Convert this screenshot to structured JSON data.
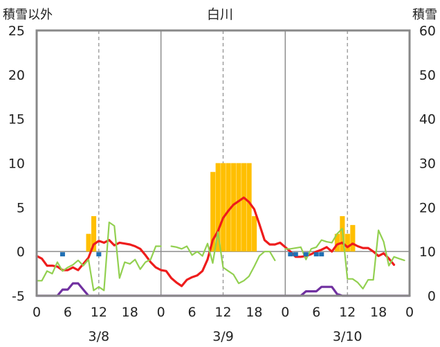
{
  "chart_data": {
    "type": "line",
    "title": "白川",
    "ylabel_left": "積雪以外",
    "ylabel_right": "積雪",
    "ylim_left": [
      -5,
      25
    ],
    "ylim_right": [
      0,
      60
    ],
    "yticks_left": [
      "25",
      "20",
      "15",
      "10",
      "5",
      "0",
      "-5"
    ],
    "yticks_right": [
      "60",
      "50",
      "40",
      "30",
      "20",
      "10",
      "0"
    ],
    "xlim_hours": [
      0,
      72
    ],
    "xtick_labels": [
      "0",
      "6",
      "12",
      "18",
      "0",
      "6",
      "12",
      "18",
      "0",
      "6",
      "12",
      "18",
      "0"
    ],
    "date_labels": [
      "3/8",
      "3/9",
      "3/10"
    ],
    "grid": "vertical day dividers and dashed noon lines",
    "colors": {
      "temperature": "#ee1c1c",
      "snowfall_bars": "#ffbf00",
      "humidity_line": "#92d050",
      "snow_depth_line": "#7030a0",
      "precip_marks": "#1f6fb4",
      "axis": "#888888"
    },
    "series": [
      {
        "values": [
          [
            0,
            -0.5
          ],
          [
            1,
            -0.8
          ],
          [
            2,
            -1.6
          ],
          [
            3,
            -1.6
          ],
          [
            4,
            -1.7
          ],
          [
            5,
            -2.1
          ],
          [
            6,
            -2.1
          ],
          [
            7,
            -1.8
          ],
          [
            8,
            -2.1
          ],
          [
            9,
            -1.4
          ],
          [
            10,
            -0.7
          ],
          [
            11,
            0.8
          ],
          [
            12,
            1.2
          ],
          [
            13,
            1.0
          ],
          [
            14,
            1.3
          ],
          [
            15,
            0.7
          ],
          [
            16,
            1.0
          ],
          [
            17,
            0.9
          ],
          [
            18,
            0.8
          ],
          [
            19,
            0.6
          ],
          [
            20,
            0.3
          ],
          [
            21,
            -0.4
          ],
          [
            22,
            -1.2
          ],
          [
            23,
            -1.8
          ],
          [
            24,
            -2.1
          ],
          [
            25,
            -2.2
          ],
          [
            26,
            -3.0
          ],
          [
            27,
            -3.5
          ],
          [
            28,
            -3.9
          ],
          [
            29,
            -3.2
          ],
          [
            30,
            -2.9
          ],
          [
            31,
            -2.7
          ],
          [
            32,
            -2.2
          ],
          [
            33,
            -0.9
          ],
          [
            34,
            1.3
          ],
          [
            35,
            2.3
          ],
          [
            36,
            3.8
          ],
          [
            37,
            4.6
          ],
          [
            38,
            5.3
          ],
          [
            39,
            5.7
          ],
          [
            40,
            6.1
          ],
          [
            41,
            5.6
          ],
          [
            42,
            4.8
          ],
          [
            43,
            3.1
          ],
          [
            44,
            1.3
          ],
          [
            45,
            0.8
          ],
          [
            46,
            0.8
          ],
          [
            47,
            1.0
          ],
          [
            48,
            0.5
          ],
          [
            49,
            0.0
          ],
          [
            50,
            -0.6
          ],
          [
            51,
            -0.6
          ],
          [
            52,
            -0.5
          ],
          [
            53,
            -0.3
          ],
          [
            54,
            0.0
          ],
          [
            55,
            0.2
          ],
          [
            56,
            0.5
          ],
          [
            57,
            0.0
          ],
          [
            58,
            0.8
          ],
          [
            59,
            1.0
          ],
          [
            60,
            0.5
          ],
          [
            61,
            0.9
          ],
          [
            62,
            0.6
          ],
          [
            63,
            0.4
          ],
          [
            64,
            0.4
          ],
          [
            65,
            0.0
          ],
          [
            66,
            -0.5
          ],
          [
            67,
            -0.2
          ],
          [
            68,
            -0.8
          ],
          [
            69,
            -1.5
          ]
        ]
      },
      {
        "values": [
          [
            0,
            -3.3
          ],
          [
            1,
            -3.3
          ],
          [
            2,
            -2.2
          ],
          [
            3,
            -2.5
          ],
          [
            4,
            -1.2
          ],
          [
            5,
            -2.2
          ],
          [
            6,
            -1.8
          ],
          [
            7,
            -1.5
          ],
          [
            8,
            -1.0
          ],
          [
            9,
            -1.6
          ],
          [
            10,
            -0.9
          ],
          [
            11,
            -4.4
          ],
          [
            12,
            -4.0
          ],
          [
            13,
            -4.4
          ],
          [
            14,
            3.3
          ],
          [
            15,
            2.9
          ],
          [
            16,
            -3.0
          ],
          [
            17,
            -1.2
          ],
          [
            18,
            -1.4
          ],
          [
            19,
            -0.9
          ],
          [
            20,
            -2.0
          ],
          [
            21,
            -1.2
          ],
          [
            22,
            -0.9
          ],
          [
            23,
            0.6
          ],
          [
            24,
            0.6
          ],
          [
            null,
            null
          ],
          [
            26,
            0.6
          ],
          [
            27,
            0.5
          ],
          [
            28,
            0.3
          ],
          [
            29,
            0.6
          ],
          [
            30,
            -0.4
          ],
          [
            31,
            0.0
          ],
          [
            32,
            -0.5
          ],
          [
            33,
            0.9
          ],
          [
            34,
            -1.3
          ],
          [
            35,
            2.2
          ],
          [
            36,
            -1.8
          ],
          [
            37,
            -2.2
          ],
          [
            38,
            -2.6
          ],
          [
            39,
            -3.6
          ],
          [
            40,
            -3.3
          ],
          [
            41,
            -2.8
          ],
          [
            42,
            -1.7
          ],
          [
            43,
            -0.5
          ],
          [
            44,
            0.0
          ],
          [
            45,
            0.0
          ],
          [
            46,
            -1.0
          ],
          [
            null,
            null
          ],
          [
            48,
            0.3
          ],
          [
            49,
            0.3
          ],
          [
            50,
            0.4
          ],
          [
            51,
            0.5
          ],
          [
            52,
            -0.9
          ],
          [
            53,
            0.3
          ],
          [
            54,
            0.5
          ],
          [
            55,
            1.3
          ],
          [
            56,
            1.1
          ],
          [
            57,
            1.0
          ],
          [
            58,
            2.0
          ],
          [
            59,
            2.6
          ],
          [
            60,
            -3.1
          ],
          [
            61,
            -3.1
          ],
          [
            62,
            -3.5
          ],
          [
            63,
            -4.2
          ],
          [
            64,
            -3.2
          ],
          [
            65,
            -3.2
          ],
          [
            66,
            2.4
          ],
          [
            67,
            1.1
          ],
          [
            68,
            -1.6
          ],
          [
            69,
            -0.6
          ],
          [
            70,
            -0.8
          ],
          [
            71,
            -1.0
          ]
        ]
      },
      {
        "values": [
          [
            0,
            -5
          ],
          [
            1,
            -5
          ],
          [
            2,
            -5
          ],
          [
            3,
            -5
          ],
          [
            4,
            -5
          ],
          [
            5,
            -4.3
          ],
          [
            6,
            -4.3
          ],
          [
            7,
            -3.6
          ],
          [
            8,
            -3.6
          ],
          [
            9,
            -4.3
          ],
          [
            10,
            -5
          ],
          [
            11,
            -5
          ],
          [
            12,
            -5
          ],
          [
            13,
            -5
          ],
          [
            24,
            -5
          ],
          [
            48,
            -5
          ],
          [
            49,
            -5
          ],
          [
            50,
            -5
          ],
          [
            51,
            -5
          ],
          [
            52,
            -4.5
          ],
          [
            53,
            -4.5
          ],
          [
            54,
            -4.5
          ],
          [
            55,
            -4.0
          ],
          [
            56,
            -4.0
          ],
          [
            57,
            -4.0
          ],
          [
            58,
            -4.8
          ],
          [
            59,
            -5
          ],
          [
            60,
            -5
          ],
          [
            72,
            -5
          ]
        ]
      }
    ],
    "snowfall_bars": [
      [
        10,
        2
      ],
      [
        11,
        4
      ],
      [
        34,
        9
      ],
      [
        35,
        10
      ],
      [
        36,
        10
      ],
      [
        37,
        10
      ],
      [
        38,
        10
      ],
      [
        39,
        10
      ],
      [
        40,
        10
      ],
      [
        41,
        10
      ],
      [
        42,
        4
      ],
      [
        58,
        2
      ],
      [
        59,
        4
      ],
      [
        60,
        2
      ],
      [
        61,
        3
      ]
    ],
    "precip_marks": [
      [
        5,
        -0.3
      ],
      [
        12,
        -0.3
      ],
      [
        49,
        -0.3
      ],
      [
        50,
        -0.3
      ],
      [
        52,
        -0.3
      ],
      [
        54,
        -0.3
      ],
      [
        55,
        -0.3
      ]
    ]
  }
}
